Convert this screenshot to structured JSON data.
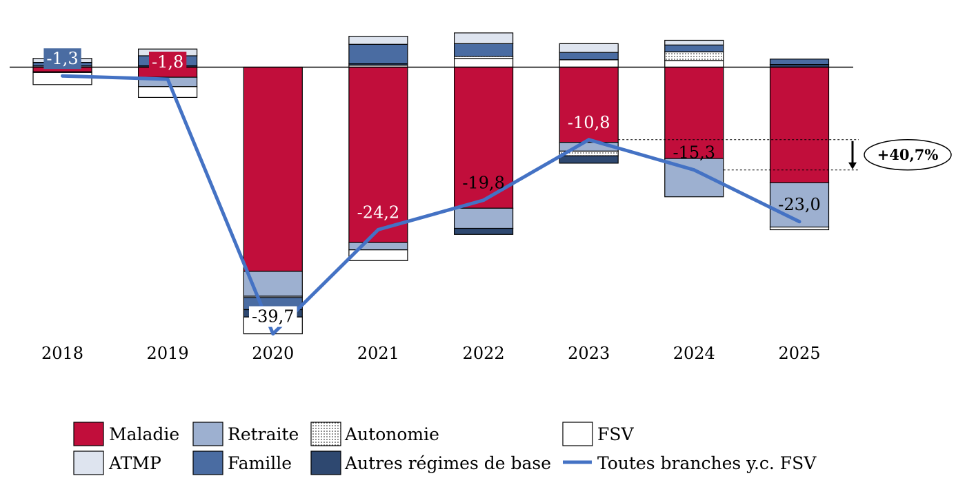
{
  "chart_data": {
    "type": "bar",
    "stacked": true,
    "categories": [
      "2018",
      "2019",
      "2020",
      "2021",
      "2022",
      "2023",
      "2024",
      "2025"
    ],
    "series": [
      {
        "name": "Maladie",
        "color": "#C10E3B",
        "values": [
          -0.7,
          -1.5,
          -30.4,
          -26.1,
          -21.0,
          -11.2,
          -13.6,
          -17.2
        ]
      },
      {
        "name": "Retraite",
        "color": "#9DB0D0",
        "values": [
          0.2,
          -1.4,
          -3.7,
          -1.1,
          -3.0,
          -1.3,
          -5.7,
          -6.6
        ]
      },
      {
        "name": "Autonomie",
        "color": "#FFFFFF",
        "pattern": "dotted",
        "values": [
          0,
          0,
          0,
          0.3,
          0.3,
          -0.7,
          1.3,
          0
        ]
      },
      {
        "name": "FSV",
        "color": "#FFFFFF",
        "values": [
          -1.8,
          -1.6,
          -2.5,
          -1.6,
          1.3,
          1.1,
          1.0,
          -0.4
        ]
      },
      {
        "name": "ATMP",
        "color": "#DEE4EF",
        "values": [
          0.6,
          1.0,
          -0.2,
          1.2,
          1.6,
          1.3,
          0.7,
          0
        ]
      },
      {
        "name": "Famille",
        "color": "#4A6CA2",
        "values": [
          0.5,
          1.5,
          -1.8,
          2.9,
          1.9,
          1.1,
          1.0,
          0.8
        ]
      },
      {
        "name": "Autres régimes de base",
        "color": "#2E4870",
        "values": [
          -0.1,
          0.2,
          -1.1,
          0.2,
          -0.9,
          -1.1,
          0,
          0.4
        ]
      }
    ],
    "line": {
      "name": "Toutes branches y.c. FSV",
      "color": "#4472C4",
      "values": [
        -1.3,
        -1.8,
        -39.7,
        -24.2,
        -19.8,
        -10.8,
        -15.3,
        -23.0
      ]
    },
    "data_labels": [
      {
        "text": "-1,3",
        "color": "#FFFFFF",
        "bg": "#4A6CA2"
      },
      {
        "text": "-1,8",
        "color": "#FFFFFF",
        "bg": "#C10E3B"
      },
      {
        "text": "-39,7",
        "color": "#000000",
        "bg": "#FFFFFF"
      },
      {
        "text": "-24,2",
        "color": "#FFFFFF",
        "bg": null
      },
      {
        "text": "-19,8",
        "color": "#000000",
        "bg": null
      },
      {
        "text": "-10,8",
        "color": "#FFFFFF",
        "bg": null
      },
      {
        "text": "-15,3",
        "color": "#000000",
        "bg": null
      },
      {
        "text": "-23,0",
        "color": "#000000",
        "bg": null
      }
    ],
    "annotation": {
      "text": "+40,7%",
      "from_category": "2023",
      "to_category": "2024"
    },
    "ylim": [
      -40,
      10
    ],
    "grid": false,
    "legend_position": "bottom"
  }
}
